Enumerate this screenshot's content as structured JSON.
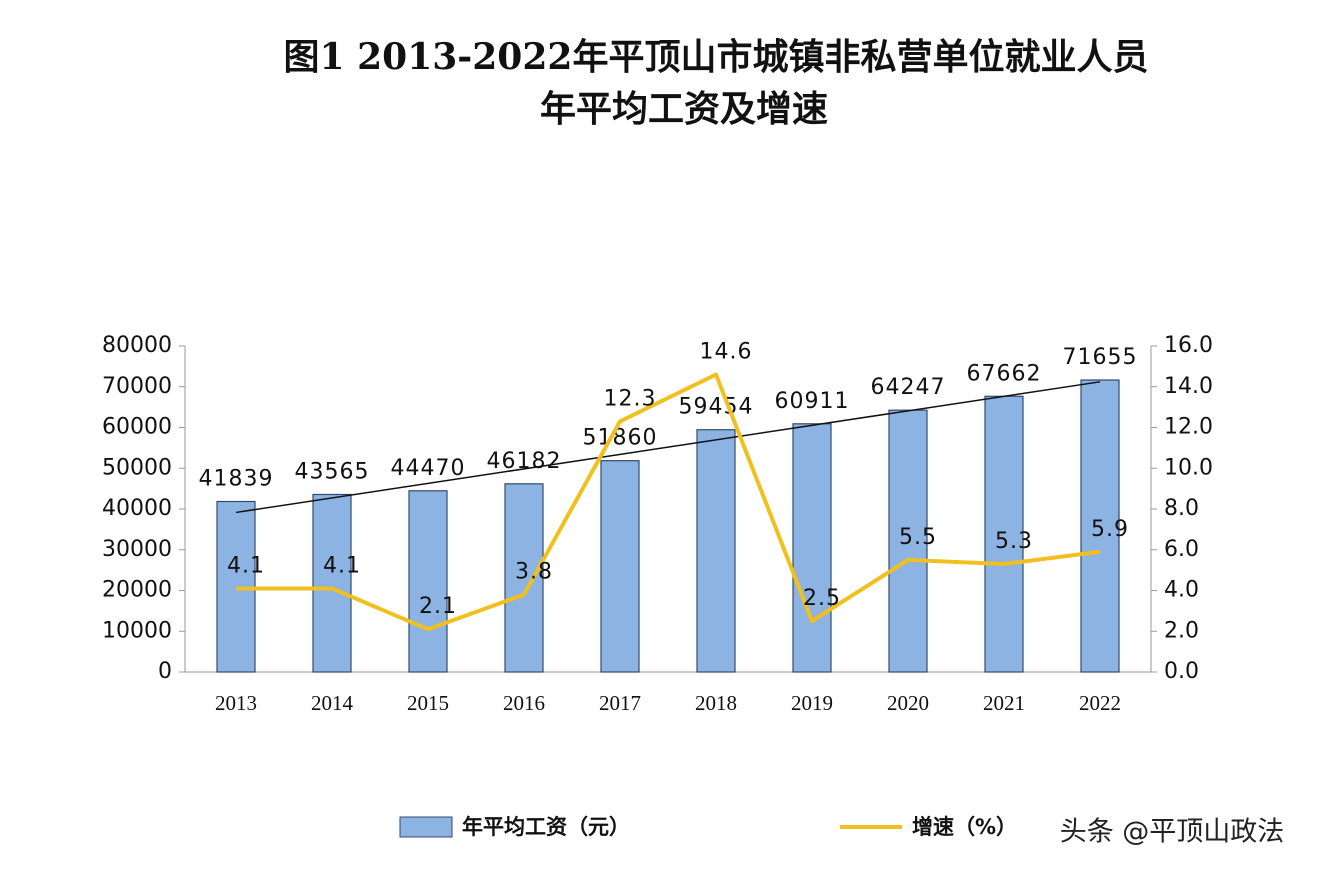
{
  "chart_data": {
    "type": "bar-line",
    "title": [
      "图1 2013-2022年平顶山市城镇非私营单位就业人员",
      "年平均工资及增速"
    ],
    "categories": [
      "2013",
      "2014",
      "2015",
      "2016",
      "2017",
      "2018",
      "2019",
      "2020",
      "2021",
      "2022"
    ],
    "series": [
      {
        "name": "年平均工资（元）",
        "type": "bar",
        "color": "#8db3e2",
        "values": [
          41839,
          43565,
          44470,
          46182,
          51860,
          59454,
          60911,
          64247,
          67662,
          71655
        ]
      },
      {
        "name": "增速（%）",
        "type": "line",
        "axis": "y2",
        "color": "#f2c01e",
        "values": [
          4.1,
          4.1,
          2.1,
          3.8,
          12.3,
          14.6,
          2.5,
          5.5,
          5.3,
          5.9
        ]
      }
    ],
    "ylim": [
      0,
      80000
    ],
    "yticks": [
      0,
      10000,
      20000,
      30000,
      40000,
      50000,
      60000,
      70000,
      80000
    ],
    "y2lim": [
      0,
      16
    ],
    "y2ticks": [
      {
        "value": 0,
        "label": "0.0"
      },
      {
        "value": 2,
        "label": "2.0"
      },
      {
        "value": 4,
        "label": "4.0"
      },
      {
        "value": 6,
        "label": "6.0"
      },
      {
        "value": 8,
        "label": "8.0"
      },
      {
        "value": 10,
        "label": "10.0"
      },
      {
        "value": 12,
        "label": "12.0"
      },
      {
        "value": 14,
        "label": "14.0"
      },
      {
        "value": 16,
        "label": "16.0"
      }
    ],
    "trendline": true,
    "watermark": "头条 @平顶山政法"
  }
}
